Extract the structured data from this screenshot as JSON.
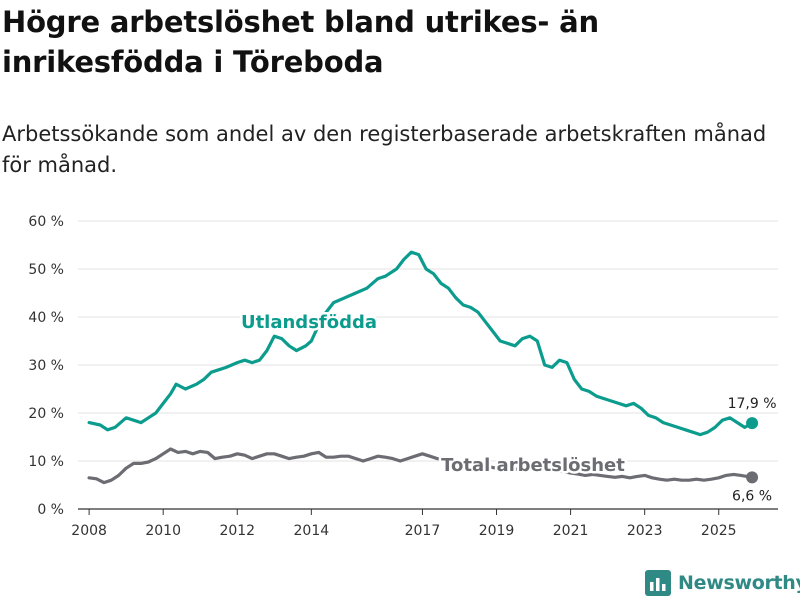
{
  "title": "Högre arbetslöshet bland utrikes- än inrikesfödda i Töreboda",
  "subtitle": "Arbetssökande som andel av den registerbaserade arbetskraften månad för månad.",
  "brand": {
    "name": "Newsworthy"
  },
  "colors": {
    "foreign": "#0c9c8e",
    "total": "#6c6c73",
    "grid": "#e3e3e3",
    "axis": "#333333",
    "brand": "#2f8a85"
  },
  "chart_data": {
    "type": "line",
    "title": "Högre arbetslöshet bland utrikes- än inrikesfödda i Töreboda",
    "subtitle": "Arbetssökande som andel av den registerbaserade arbetskraften månad för månad.",
    "xlabel": "",
    "ylabel": "",
    "xlim": [
      2007.7,
      2026.6
    ],
    "ylim": [
      0,
      60
    ],
    "yticks": [
      0,
      10,
      20,
      30,
      40,
      50,
      60
    ],
    "ytick_labels": [
      "0 %",
      "10 %",
      "20 %",
      "30 %",
      "40 %",
      "50 %",
      "60 %"
    ],
    "xticks": [
      2008,
      2010,
      2012,
      2014,
      2017,
      2019,
      2021,
      2023,
      2025
    ],
    "xtick_labels": [
      "2008",
      "2010",
      "2012",
      "2014",
      "2017",
      "2019",
      "2021",
      "2023",
      "2025"
    ],
    "grid": true,
    "legend": "inline labels",
    "series": [
      {
        "name": "Utlandsfödda",
        "end_label": "17,9 %",
        "x": [
          2008.0,
          2008.3,
          2008.5,
          2008.7,
          2009.0,
          2009.2,
          2009.4,
          2009.6,
          2009.8,
          2010.0,
          2010.2,
          2010.35,
          2010.6,
          2010.9,
          2011.1,
          2011.3,
          2011.5,
          2011.7,
          2012.0,
          2012.2,
          2012.4,
          2012.6,
          2012.8,
          2013.0,
          2013.2,
          2013.4,
          2013.6,
          2013.85,
          2014.0,
          2014.3,
          2014.6,
          2014.9,
          2015.2,
          2015.5,
          2015.8,
          2016.0,
          2016.3,
          2016.5,
          2016.7,
          2016.9,
          2017.1,
          2017.3,
          2017.5,
          2017.7,
          2017.9,
          2018.1,
          2018.3,
          2018.5,
          2018.7,
          2018.9,
          2019.1,
          2019.3,
          2019.5,
          2019.7,
          2019.9,
          2020.1,
          2020.3,
          2020.5,
          2020.7,
          2020.9,
          2021.1,
          2021.3,
          2021.5,
          2021.7,
          2021.9,
          2022.1,
          2022.3,
          2022.5,
          2022.7,
          2022.9,
          2023.1,
          2023.3,
          2023.5,
          2023.7,
          2023.9,
          2024.1,
          2024.3,
          2024.5,
          2024.7,
          2024.9,
          2025.1,
          2025.3,
          2025.5,
          2025.7,
          2025.9
        ],
        "values": [
          18,
          17.5,
          16.5,
          17,
          19,
          18.5,
          18,
          19,
          20,
          22,
          24,
          26,
          25,
          26,
          27,
          28.5,
          29,
          29.5,
          30.5,
          31,
          30.5,
          31,
          33,
          36,
          35.5,
          34,
          33,
          34,
          35,
          40,
          43,
          44,
          45,
          46,
          48,
          48.5,
          50,
          52,
          53.5,
          53,
          50,
          49,
          47,
          46,
          44,
          42.5,
          42,
          41,
          39,
          37,
          35,
          34.5,
          34,
          35.5,
          36,
          35,
          30,
          29.5,
          31,
          30.5,
          27,
          25,
          24.5,
          23.5,
          23,
          22.5,
          22,
          21.5,
          22,
          21,
          19.5,
          19,
          18,
          17.5,
          17,
          16.5,
          16,
          15.5,
          16,
          17,
          18.5,
          19,
          18,
          17,
          17.9
        ]
      },
      {
        "name": "Total arbetslöshet",
        "end_label": "6,6 %",
        "x": [
          2008.0,
          2008.2,
          2008.4,
          2008.6,
          2008.8,
          2009.0,
          2009.2,
          2009.4,
          2009.6,
          2009.8,
          2010.0,
          2010.2,
          2010.4,
          2010.6,
          2010.8,
          2011.0,
          2011.2,
          2011.4,
          2011.6,
          2011.8,
          2012.0,
          2012.2,
          2012.4,
          2012.6,
          2012.8,
          2013.0,
          2013.2,
          2013.4,
          2013.6,
          2013.8,
          2014.0,
          2014.2,
          2014.4,
          2014.6,
          2014.8,
          2015.0,
          2015.2,
          2015.4,
          2015.6,
          2015.8,
          2016.0,
          2016.2,
          2016.4,
          2016.6,
          2016.8,
          2017.0,
          2017.2,
          2017.4,
          2017.6,
          2017.8,
          2018.0,
          2018.2,
          2018.4,
          2018.6,
          2018.8,
          2019.0,
          2019.2,
          2019.4,
          2019.6,
          2019.8,
          2020.0,
          2020.2,
          2020.4,
          2020.6,
          2020.8,
          2021.0,
          2021.2,
          2021.4,
          2021.6,
          2021.8,
          2022.0,
          2022.2,
          2022.4,
          2022.6,
          2022.8,
          2023.0,
          2023.2,
          2023.4,
          2023.6,
          2023.8,
          2024.0,
          2024.2,
          2024.4,
          2024.6,
          2024.8,
          2025.0,
          2025.2,
          2025.4,
          2025.6,
          2025.9
        ],
        "values": [
          6.5,
          6.3,
          5.5,
          6.0,
          7.0,
          8.5,
          9.5,
          9.5,
          9.8,
          10.5,
          11.5,
          12.5,
          11.8,
          12.0,
          11.5,
          12.0,
          11.8,
          10.5,
          10.8,
          11.0,
          11.5,
          11.2,
          10.5,
          11.0,
          11.5,
          11.5,
          11.0,
          10.5,
          10.8,
          11.0,
          11.5,
          11.8,
          10.8,
          10.8,
          11.0,
          11.0,
          10.5,
          10.0,
          10.5,
          11.0,
          10.8,
          10.5,
          10.0,
          10.5,
          11.0,
          11.5,
          11.0,
          10.5,
          10.2,
          10.0,
          9.8,
          9.5,
          9.0,
          9.0,
          8.8,
          8.5,
          8.2,
          8.5,
          8.2,
          8.0,
          8.5,
          8.2,
          7.8,
          8.0,
          7.8,
          7.5,
          7.3,
          7.0,
          7.2,
          7.0,
          6.8,
          6.6,
          6.8,
          6.5,
          6.8,
          7.0,
          6.5,
          6.2,
          6.0,
          6.2,
          6.0,
          6.0,
          6.2,
          6.0,
          6.2,
          6.5,
          7.0,
          7.2,
          7.0,
          6.6
        ]
      }
    ]
  }
}
